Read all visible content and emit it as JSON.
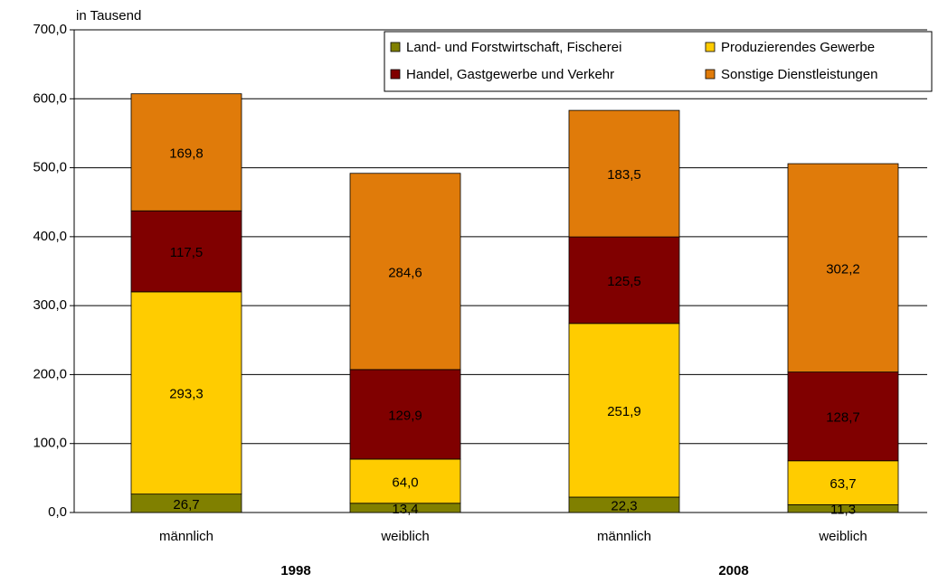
{
  "chart_data": {
    "type": "stacked_bar",
    "y_unit_label": "in Tausend",
    "categories": [
      "männlich",
      "weiblich",
      "männlich",
      "weiblich"
    ],
    "group_labels": [
      "1998",
      "2008"
    ],
    "series": [
      {
        "name": "Land- und Forstwirtschaft, Fischerei",
        "color": "#808000",
        "values": [
          26.7,
          13.4,
          22.3,
          11.3
        ],
        "value_labels": [
          "26,7",
          "13,4",
          "22,3",
          "11,3"
        ]
      },
      {
        "name": "Produzierendes Gewerbe",
        "color": "#ffcc00",
        "values": [
          293.3,
          64.0,
          251.9,
          63.7
        ],
        "value_labels": [
          "293,3",
          "64,0",
          "251,9",
          "63,7"
        ]
      },
      {
        "name": "Handel, Gastgewerbe und Verkehr",
        "color": "#800000",
        "values": [
          117.5,
          129.9,
          125.5,
          128.7
        ],
        "value_labels": [
          "117,5",
          "129,9",
          "125,5",
          "128,7"
        ]
      },
      {
        "name": "Sonstige Dienstleistungen",
        "color": "#e07b0a",
        "values": [
          169.8,
          284.6,
          183.5,
          302.2
        ],
        "value_labels": [
          "169,8",
          "284,6",
          "183,5",
          "302,2"
        ]
      }
    ],
    "ylim": [
      0,
      700
    ],
    "yticks": [
      {
        "value": 0,
        "label": "0,0"
      },
      {
        "value": 100,
        "label": "100,0"
      },
      {
        "value": 200,
        "label": "200,0"
      },
      {
        "value": 300,
        "label": "300,0"
      },
      {
        "value": 400,
        "label": "400,0"
      },
      {
        "value": 500,
        "label": "500,0"
      },
      {
        "value": 600,
        "label": "600,0"
      },
      {
        "value": 700,
        "label": "700,0"
      }
    ],
    "grid": true,
    "legend": "top-right"
  }
}
